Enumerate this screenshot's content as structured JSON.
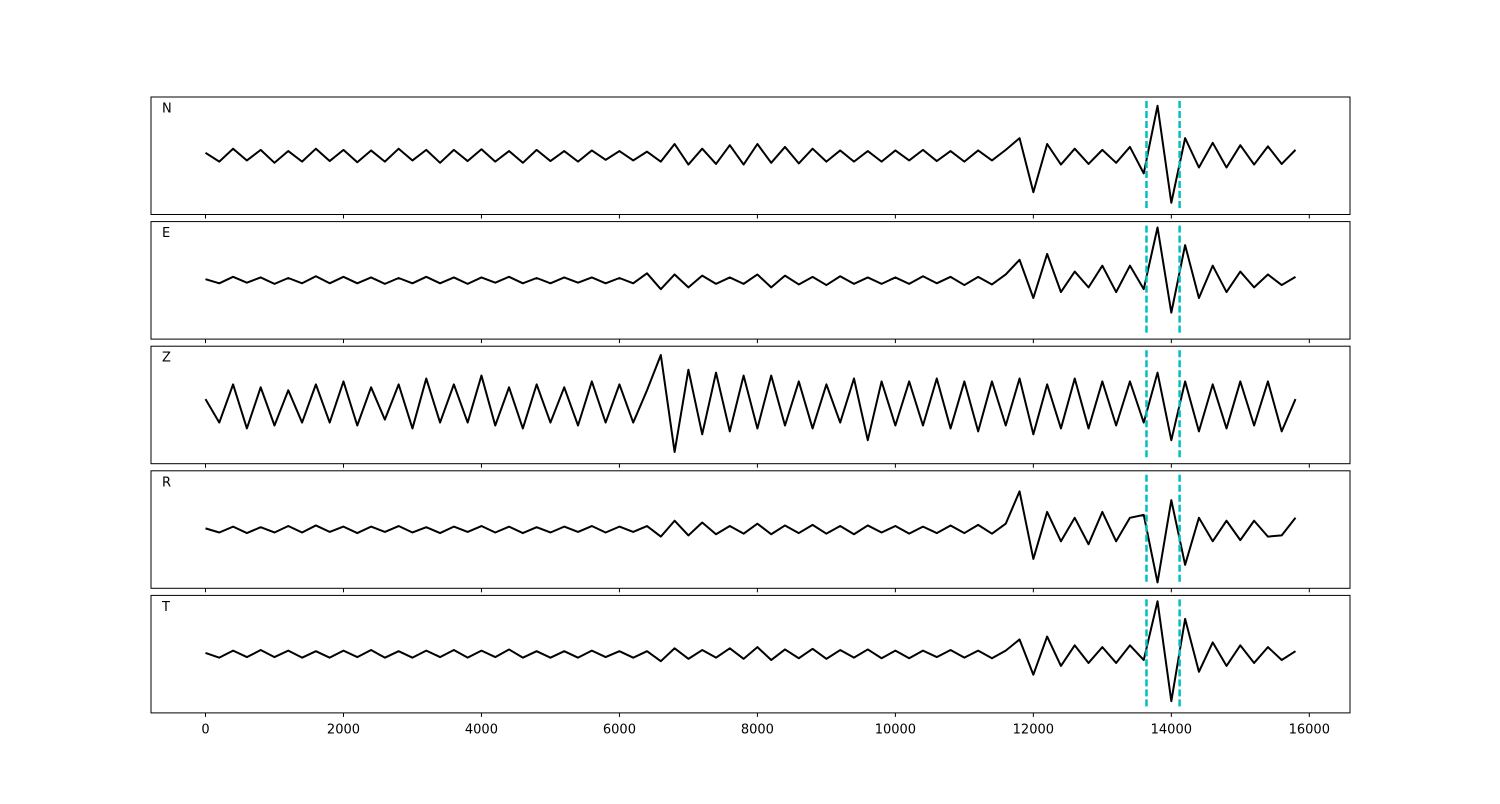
{
  "chart_data": {
    "type": "line",
    "x": [
      0,
      200,
      400,
      600,
      800,
      1000,
      1200,
      1400,
      1600,
      1800,
      2000,
      2200,
      2400,
      2600,
      2800,
      3000,
      3200,
      3400,
      3600,
      3800,
      4000,
      4200,
      4400,
      4600,
      4800,
      5000,
      5200,
      5400,
      5600,
      5800,
      6000,
      6200,
      6400,
      6600,
      6800,
      7000,
      7200,
      7400,
      7600,
      7800,
      8000,
      8200,
      8400,
      8600,
      8800,
      9000,
      9200,
      9400,
      9600,
      9800,
      10000,
      10200,
      10400,
      10600,
      10800,
      11000,
      11200,
      11400,
      11600,
      11800,
      12000,
      12200,
      12400,
      12600,
      12800,
      13000,
      13200,
      13400,
      13600,
      13800,
      14000,
      14200,
      14400,
      14600,
      14800,
      15000,
      15200,
      15400,
      15600,
      15800
    ],
    "xlim": [
      -790,
      16590
    ],
    "xticks": [
      0,
      2000,
      4000,
      6000,
      8000,
      10000,
      12000,
      14000,
      16000
    ],
    "ylim": [
      -1,
      1
    ],
    "series": [
      {
        "name": "N",
        "color": "#000000",
        "values": [
          0.05,
          -0.1,
          0.12,
          -0.08,
          0.1,
          -0.12,
          0.08,
          -0.1,
          0.12,
          -0.09,
          0.1,
          -0.11,
          0.09,
          -0.1,
          0.12,
          -0.08,
          0.1,
          -0.12,
          0.1,
          -0.09,
          0.11,
          -0.1,
          0.08,
          -0.12,
          0.1,
          -0.09,
          0.08,
          -0.1,
          0.09,
          -0.07,
          0.08,
          -0.08,
          0.07,
          -0.1,
          0.2,
          -0.15,
          0.12,
          -0.14,
          0.18,
          -0.15,
          0.2,
          -0.12,
          0.15,
          -0.13,
          0.12,
          -0.1,
          0.09,
          -0.1,
          0.08,
          -0.1,
          0.09,
          -0.08,
          0.1,
          -0.09,
          0.08,
          -0.1,
          0.09,
          -0.08,
          0.1,
          0.3,
          -0.62,
          0.2,
          -0.15,
          0.12,
          -0.14,
          0.1,
          -0.12,
          0.15,
          -0.3,
          0.85,
          -0.8,
          0.3,
          -0.2,
          0.22,
          -0.2,
          0.18,
          -0.15,
          0.16,
          -0.14,
          0.1
        ]
      },
      {
        "name": "E",
        "color": "#000000",
        "values": [
          0.02,
          -0.05,
          0.06,
          -0.04,
          0.05,
          -0.06,
          0.04,
          -0.05,
          0.07,
          -0.05,
          0.06,
          -0.05,
          0.05,
          -0.06,
          0.04,
          -0.05,
          0.06,
          -0.05,
          0.05,
          -0.06,
          0.05,
          -0.04,
          0.06,
          -0.05,
          0.04,
          -0.05,
          0.05,
          -0.04,
          0.05,
          -0.05,
          0.04,
          -0.05,
          0.12,
          -0.15,
          0.1,
          -0.12,
          0.08,
          -0.06,
          0.05,
          -0.06,
          0.1,
          -0.12,
          0.08,
          -0.07,
          0.06,
          -0.08,
          0.07,
          -0.06,
          0.05,
          -0.06,
          0.05,
          -0.06,
          0.07,
          -0.05,
          0.06,
          -0.08,
          0.06,
          -0.07,
          0.1,
          0.35,
          -0.3,
          0.45,
          -0.2,
          0.15,
          -0.12,
          0.25,
          -0.2,
          0.25,
          -0.15,
          0.9,
          -0.55,
          0.6,
          -0.3,
          0.25,
          -0.2,
          0.15,
          -0.12,
          0.1,
          -0.08,
          0.06
        ]
      },
      {
        "name": "Z",
        "color": "#000000",
        "values": [
          0.1,
          -0.3,
          0.35,
          -0.4,
          0.3,
          -0.35,
          0.25,
          -0.3,
          0.35,
          -0.3,
          0.4,
          -0.35,
          0.3,
          -0.25,
          0.35,
          -0.4,
          0.45,
          -0.3,
          0.35,
          -0.3,
          0.5,
          -0.35,
          0.3,
          -0.4,
          0.35,
          -0.3,
          0.3,
          -0.35,
          0.4,
          -0.3,
          0.35,
          -0.3,
          0.25,
          0.85,
          -0.8,
          0.6,
          -0.5,
          0.55,
          -0.45,
          0.5,
          -0.4,
          0.5,
          -0.35,
          0.4,
          -0.4,
          0.35,
          -0.3,
          0.45,
          -0.6,
          0.4,
          -0.35,
          0.4,
          -0.35,
          0.45,
          -0.4,
          0.4,
          -0.45,
          0.4,
          -0.35,
          0.45,
          -0.5,
          0.35,
          -0.4,
          0.45,
          -0.4,
          0.4,
          -0.35,
          0.4,
          -0.3,
          0.55,
          -0.6,
          0.4,
          -0.45,
          0.35,
          -0.4,
          0.4,
          -0.35,
          0.4,
          -0.45,
          0.1
        ]
      },
      {
        "name": "R",
        "color": "#000000",
        "values": [
          0.02,
          -0.05,
          0.05,
          -0.06,
          0.04,
          -0.05,
          0.06,
          -0.05,
          0.07,
          -0.04,
          0.05,
          -0.06,
          0.05,
          -0.04,
          0.06,
          -0.05,
          0.04,
          -0.06,
          0.05,
          -0.04,
          0.06,
          -0.05,
          0.05,
          -0.06,
          0.04,
          -0.05,
          0.05,
          -0.04,
          0.06,
          -0.05,
          0.05,
          -0.04,
          0.06,
          -0.12,
          0.15,
          -0.1,
          0.12,
          -0.08,
          0.06,
          -0.07,
          0.1,
          -0.08,
          0.07,
          -0.06,
          0.08,
          -0.07,
          0.06,
          -0.08,
          0.07,
          -0.05,
          0.06,
          -0.07,
          0.05,
          -0.06,
          0.07,
          -0.06,
          0.08,
          -0.07,
          0.1,
          0.65,
          -0.5,
          0.3,
          -0.2,
          0.2,
          -0.25,
          0.3,
          -0.2,
          0.2,
          0.25,
          -0.9,
          0.5,
          -0.6,
          0.2,
          -0.2,
          0.15,
          -0.18,
          0.15,
          -0.12,
          -0.1,
          0.2
        ]
      },
      {
        "name": "T",
        "color": "#000000",
        "values": [
          0.02,
          -0.06,
          0.06,
          -0.05,
          0.07,
          -0.05,
          0.06,
          -0.06,
          0.05,
          -0.06,
          0.06,
          -0.05,
          0.07,
          -0.06,
          0.05,
          -0.06,
          0.06,
          -0.05,
          0.07,
          -0.06,
          0.06,
          -0.05,
          0.08,
          -0.06,
          0.05,
          -0.06,
          0.05,
          -0.06,
          0.06,
          -0.05,
          0.05,
          -0.06,
          0.05,
          -0.12,
          0.1,
          -0.08,
          0.07,
          -0.06,
          0.1,
          -0.08,
          0.12,
          -0.1,
          0.08,
          -0.07,
          0.09,
          -0.08,
          0.07,
          -0.06,
          0.08,
          -0.07,
          0.06,
          -0.07,
          0.06,
          -0.05,
          0.07,
          -0.06,
          0.06,
          -0.07,
          0.06,
          0.25,
          -0.35,
          0.3,
          -0.2,
          0.15,
          -0.15,
          0.12,
          -0.15,
          0.15,
          -0.1,
          0.9,
          -0.8,
          0.6,
          -0.3,
          0.2,
          -0.2,
          0.15,
          -0.15,
          0.12,
          -0.1,
          0.05
        ]
      }
    ],
    "markers": [
      13640,
      14120
    ],
    "marker_color": "#00bfbf",
    "marker_style": "dashed"
  }
}
